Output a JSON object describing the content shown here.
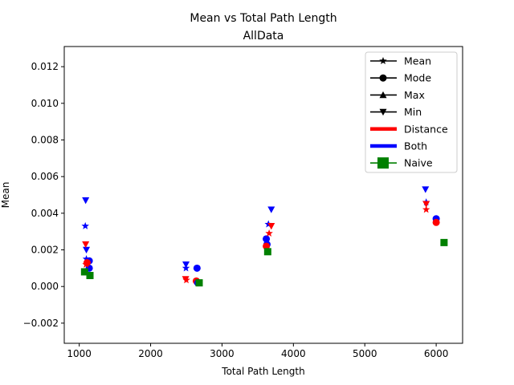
{
  "chart_data": {
    "type": "scatter",
    "title": "Mean vs Total Path Length",
    "subtitle": "AllData",
    "xlabel": "Total Path Length",
    "ylabel": "Mean",
    "xlim": [
      790,
      6370
    ],
    "ylim": [
      -0.0031,
      0.0131
    ],
    "xticks": [
      1000,
      2000,
      3000,
      4000,
      5000,
      6000
    ],
    "xtick_labels": [
      "1000",
      "2000",
      "3000",
      "4000",
      "5000",
      "6000"
    ],
    "yticks": [
      -0.002,
      0,
      0.002,
      0.004,
      0.006,
      0.008,
      0.01,
      0.012
    ],
    "ytick_labels": [
      "−0.002",
      "0.000",
      "0.002",
      "0.004",
      "0.006",
      "0.008",
      "0.010",
      "0.012"
    ],
    "grid": false,
    "legend_placement": "top-right",
    "colors": {
      "Distance": "#ff0000",
      "Both": "#0000ff",
      "Naive": "#008000"
    },
    "legend": [
      {
        "label": "Mean",
        "kind": "marker",
        "marker": "star",
        "color": "#000000"
      },
      {
        "label": "Mode",
        "kind": "marker",
        "marker": "circle",
        "color": "#000000"
      },
      {
        "label": "Max",
        "kind": "marker",
        "marker": "triangle-up",
        "color": "#000000"
      },
      {
        "label": "Min",
        "kind": "marker",
        "marker": "triangle-down",
        "color": "#000000"
      },
      {
        "label": "Distance",
        "kind": "line",
        "color": "#ff0000"
      },
      {
        "label": "Both",
        "kind": "line",
        "color": "#0000ff"
      },
      {
        "label": "Naive",
        "kind": "square",
        "color": "#008000"
      }
    ],
    "points": [
      {
        "x": 1085,
        "y": 0.0033,
        "marker": "star",
        "group": "Both"
      },
      {
        "x": 1090,
        "y": 0.0047,
        "marker": "triangle-down",
        "group": "Both"
      },
      {
        "x": 1100,
        "y": 0.002,
        "marker": "triangle-down",
        "group": "Both"
      },
      {
        "x": 1100,
        "y": 0.0015,
        "marker": "star",
        "group": "Both"
      },
      {
        "x": 1140,
        "y": 0.0014,
        "marker": "circle",
        "group": "Both"
      },
      {
        "x": 1140,
        "y": 0.001,
        "marker": "circle",
        "group": "Both"
      },
      {
        "x": 1090,
        "y": 0.0023,
        "marker": "triangle-down",
        "group": "Distance"
      },
      {
        "x": 1095,
        "y": 0.0012,
        "marker": "star",
        "group": "Distance"
      },
      {
        "x": 1110,
        "y": 0.0013,
        "marker": "circle",
        "group": "Distance"
      },
      {
        "x": 1075,
        "y": 0.0008,
        "marker": "square",
        "group": "Naive"
      },
      {
        "x": 1150,
        "y": 0.0006,
        "marker": "square",
        "group": "Naive"
      },
      {
        "x": 2495,
        "y": 0.0012,
        "marker": "triangle-down",
        "group": "Both"
      },
      {
        "x": 2495,
        "y": 0.001,
        "marker": "star",
        "group": "Both"
      },
      {
        "x": 2650,
        "y": 0.001,
        "marker": "circle",
        "group": "Both"
      },
      {
        "x": 2490,
        "y": 0.0004,
        "marker": "triangle-down",
        "group": "Distance"
      },
      {
        "x": 2500,
        "y": 0.00035,
        "marker": "star",
        "group": "Distance"
      },
      {
        "x": 2640,
        "y": 0.0003,
        "marker": "circle",
        "group": "Distance"
      },
      {
        "x": 2660,
        "y": 0.0002,
        "marker": "circle",
        "group": "Both"
      },
      {
        "x": 2680,
        "y": 0.0002,
        "marker": "square",
        "group": "Naive"
      },
      {
        "x": 3690,
        "y": 0.0042,
        "marker": "triangle-down",
        "group": "Both"
      },
      {
        "x": 3650,
        "y": 0.0034,
        "marker": "star",
        "group": "Both"
      },
      {
        "x": 3620,
        "y": 0.0026,
        "marker": "circle",
        "group": "Both"
      },
      {
        "x": 3630,
        "y": 0.0023,
        "marker": "circle",
        "group": "Both"
      },
      {
        "x": 3690,
        "y": 0.0033,
        "marker": "triangle-down",
        "group": "Distance"
      },
      {
        "x": 3660,
        "y": 0.0029,
        "marker": "star",
        "group": "Distance"
      },
      {
        "x": 3620,
        "y": 0.0022,
        "marker": "circle",
        "group": "Distance"
      },
      {
        "x": 3640,
        "y": 0.0019,
        "marker": "square",
        "group": "Naive"
      },
      {
        "x": 5850,
        "y": 0.0053,
        "marker": "triangle-down",
        "group": "Both"
      },
      {
        "x": 5860,
        "y": 0.0046,
        "marker": "star",
        "group": "Both"
      },
      {
        "x": 5860,
        "y": 0.0045,
        "marker": "triangle-down",
        "group": "Distance"
      },
      {
        "x": 5860,
        "y": 0.0042,
        "marker": "star",
        "group": "Distance"
      },
      {
        "x": 6000,
        "y": 0.0037,
        "marker": "circle",
        "group": "Both"
      },
      {
        "x": 6000,
        "y": 0.0035,
        "marker": "circle",
        "group": "Distance"
      },
      {
        "x": 6110,
        "y": 0.0024,
        "marker": "square",
        "group": "Naive"
      }
    ]
  }
}
